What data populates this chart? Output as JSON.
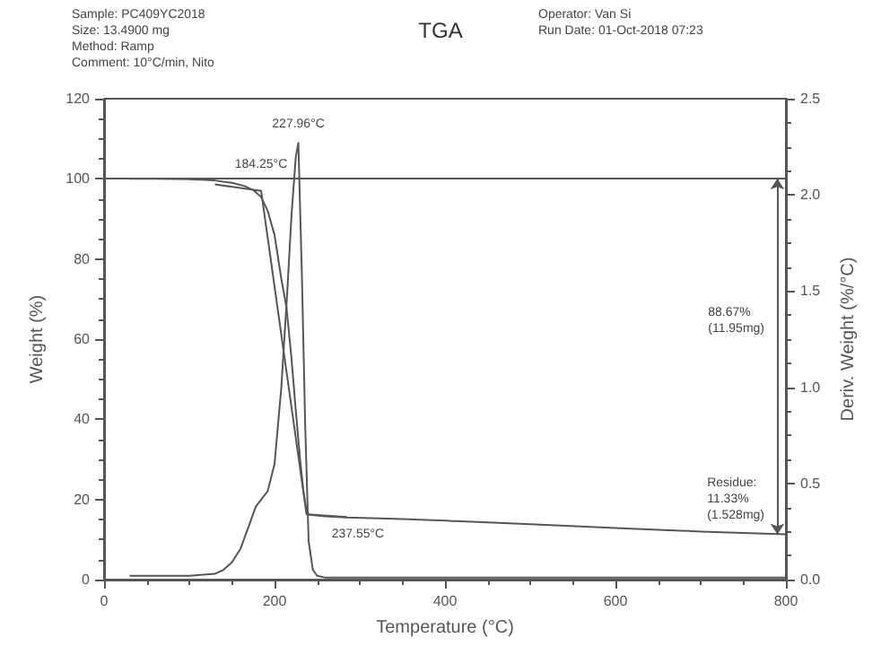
{
  "chart_data": {
    "type": "line",
    "title": "TGA",
    "xlabel": "Temperature (°C)",
    "ylabel": "Weight (%)",
    "y2label": "Deriv. Weight (%/°C)",
    "xlim": [
      0,
      800
    ],
    "xticks": [
      0,
      200,
      400,
      600,
      800
    ],
    "ylim": [
      0,
      120
    ],
    "yticks": [
      0,
      20,
      40,
      60,
      80,
      100,
      120
    ],
    "y2lim": [
      0,
      2.5
    ],
    "y2ticks": [
      {
        "value": 0,
        "label": "0.0"
      },
      {
        "value": 0.5,
        "label": "0.5"
      },
      {
        "value": 1,
        "label": "1.0"
      },
      {
        "value": 1.5,
        "label": "1.5"
      },
      {
        "value": 2,
        "label": "2.0"
      },
      {
        "value": 2.5,
        "label": "2.5"
      }
    ],
    "grid": false,
    "marker": "none",
    "line_style": "solid",
    "series": [
      {
        "color": "#555555",
        "x": [
          30,
          60,
          100,
          130,
          150,
          165,
          175,
          184.25,
          192,
          200,
          208,
          214,
          220,
          225,
          230,
          234,
          237.55,
          241,
          260,
          285,
          350,
          400,
          500,
          600,
          700,
          800
        ],
        "values": [
          100,
          100,
          99.9,
          99.6,
          99,
          98.2,
          97.2,
          95.5,
          92,
          86,
          75,
          68,
          55,
          42,
          30,
          22,
          17,
          16.2,
          15.8,
          15.5,
          15.1,
          14.7,
          13.8,
          12.9,
          12,
          11.33
        ]
      },
      {
        "color": "#555555",
        "axis": "y2",
        "x": [
          30,
          100,
          130,
          140,
          150,
          160,
          170,
          178,
          185,
          192,
          200,
          208,
          215,
          220,
          225,
          227.96,
          232,
          236,
          240,
          245,
          250,
          260,
          300,
          400,
          500,
          600,
          700,
          800
        ],
        "values": [
          0.02,
          0.02,
          0.03,
          0.05,
          0.09,
          0.16,
          0.28,
          0.38,
          0.42,
          0.46,
          0.6,
          1,
          1.5,
          1.9,
          2.2,
          2.27,
          1.6,
          0.8,
          0.2,
          0.05,
          0.02,
          0.01,
          0.01,
          0.01,
          0.01,
          0.01,
          0.01,
          0.01
        ]
      },
      {
        "color": "#555555",
        "x": [
          130,
          184.25,
          237.55,
          285
        ],
        "values": [
          98.6,
          97,
          16.3,
          15.6
        ]
      }
    ],
    "ref_lines": [
      {
        "axis": "y",
        "value": 100,
        "color": "#555555"
      }
    ],
    "annotations": [
      "Sample: PC409YC2018\nSize: 13.4900 mg\nMethod: Ramp\nComment: 10°C/min, Nito",
      "Operator: Van Si\nRun Date: 01-Oct-2018 07:23",
      {
        "text": "184.25°C",
        "x": 184.25,
        "y": 97
      },
      {
        "text": "227.96°C",
        "x": 227.96,
        "y": 107
      },
      {
        "text": "237.55°C",
        "x": 237.55,
        "y": 16
      },
      "88.67%\n(11.95mg)",
      "Residue:\n11.33%\n(1.528mg)"
    ]
  }
}
